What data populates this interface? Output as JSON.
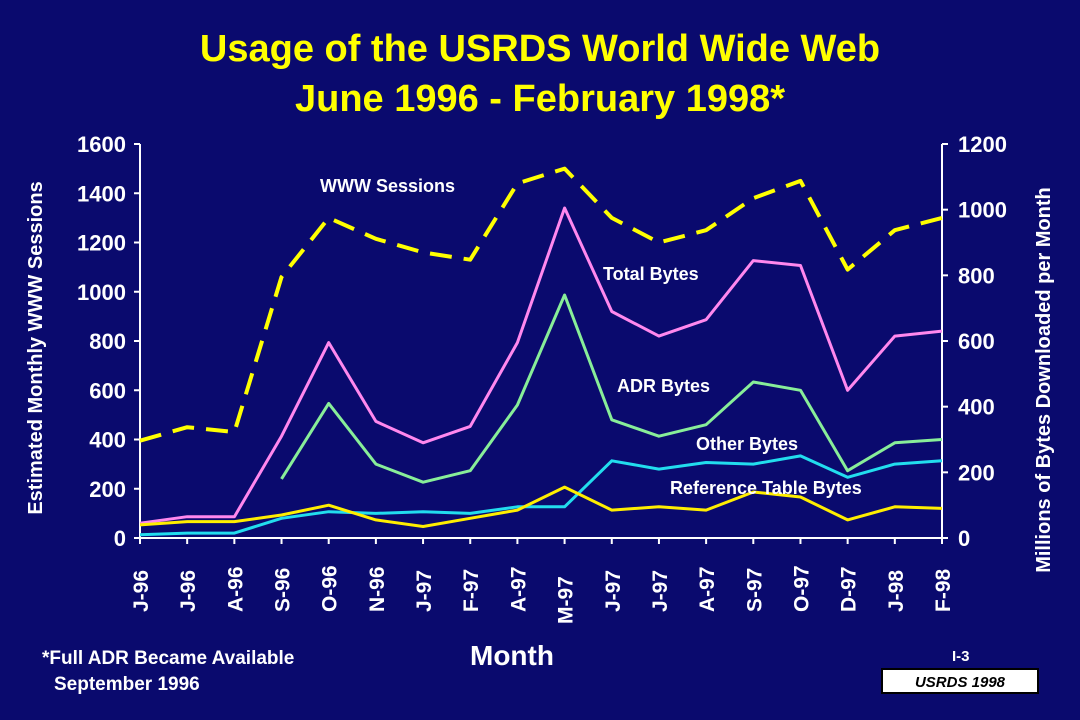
{
  "title_line1": "Usage of the USRDS World Wide Web",
  "title_line2": "June 1996 - February 1998*",
  "footnote_line1": "*Full ADR Became Available",
  "footnote_line2": "September 1996",
  "page_ref": "I-3",
  "badge": "USRDS 1998",
  "colors": {
    "background": "#0a0a6e",
    "title": "#ffff00",
    "www_sessions": "#ffff00",
    "total_bytes": "#ff88ee",
    "adr_bytes": "#88ee99",
    "other_bytes": "#22ddee",
    "reference_table_bytes": "#ffee00"
  },
  "chart_data": {
    "type": "line",
    "title": "Usage of the USRDS World Wide Web June 1996 - February 1998*",
    "xlabel": "Month",
    "ylabel_left": "Estimated Monthly WWW Sessions",
    "ylabel_right": "Millions of Bytes Downloaded per Month",
    "ylim_left": [
      0,
      1600
    ],
    "ylim_right": [
      0,
      1200
    ],
    "yticks_left": [
      "0",
      "200",
      "400",
      "600",
      "800",
      "1000",
      "1200",
      "1400",
      "1600"
    ],
    "yticks_right": [
      "0",
      "200",
      "400",
      "600",
      "800",
      "1000",
      "1200"
    ],
    "categories": [
      "J-96",
      "J-96",
      "A-96",
      "S-96",
      "O-96",
      "N-96",
      "J-97",
      "F-97",
      "A-97",
      "M-97",
      "J-97",
      "J-97",
      "A-97",
      "S-97",
      "O-97",
      "D-97",
      "J-98",
      "F-98"
    ],
    "grid": false,
    "legend": "inline labels",
    "series": [
      {
        "name": "WWW Sessions",
        "axis": "left",
        "style": "dashed",
        "values": [
          395,
          450,
          430,
          1060,
          1300,
          1215,
          1160,
          1130,
          1440,
          1500,
          1300,
          1200,
          1250,
          1380,
          1450,
          1090,
          1250,
          1300
        ]
      },
      {
        "name": "Total Bytes",
        "axis": "right",
        "style": "solid",
        "values": [
          45,
          65,
          65,
          310,
          595,
          355,
          290,
          340,
          595,
          1005,
          690,
          615,
          665,
          845,
          830,
          450,
          615,
          630
        ]
      },
      {
        "name": "ADR Bytes",
        "axis": "right",
        "style": "solid",
        "values": [
          null,
          null,
          null,
          180,
          410,
          225,
          170,
          205,
          405,
          740,
          360,
          310,
          345,
          475,
          450,
          205,
          290,
          300
        ]
      },
      {
        "name": "Other Bytes",
        "axis": "right",
        "style": "solid",
        "values": [
          10,
          15,
          15,
          60,
          80,
          75,
          80,
          75,
          95,
          95,
          235,
          210,
          230,
          225,
          250,
          185,
          225,
          235
        ]
      },
      {
        "name": "Reference Table Bytes",
        "axis": "right",
        "style": "solid",
        "values": [
          40,
          50,
          50,
          70,
          100,
          55,
          35,
          60,
          85,
          155,
          85,
          95,
          85,
          140,
          125,
          55,
          95,
          90
        ]
      }
    ]
  }
}
